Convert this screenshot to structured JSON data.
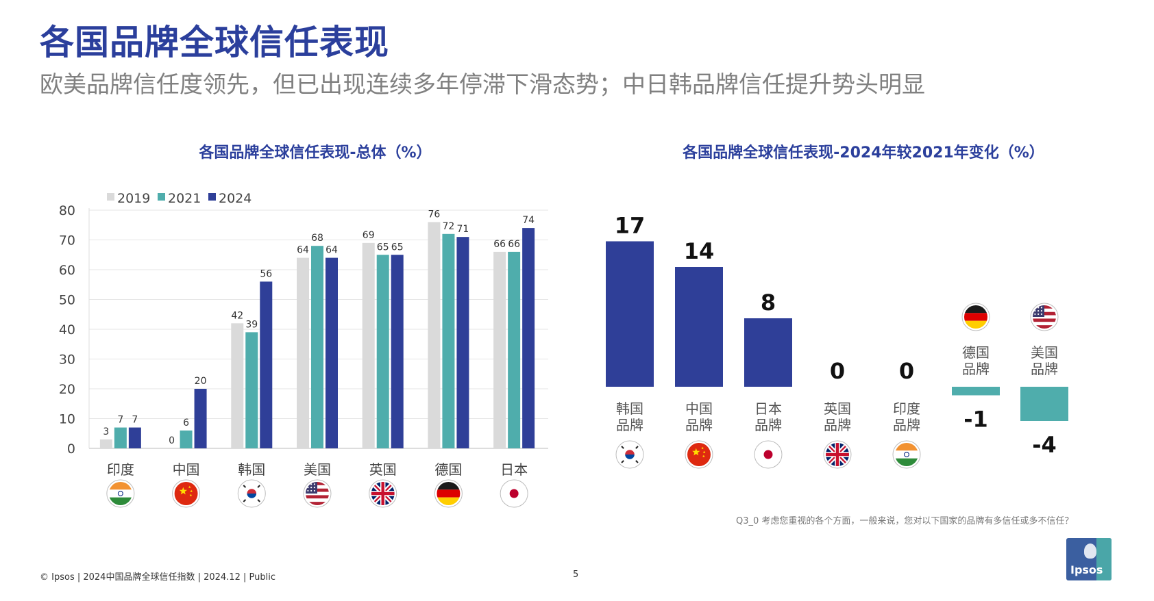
{
  "header": {
    "title": "各国品牌全球信任表现",
    "subtitle": "欧美品牌信任度领先，但已出现连续多年停滞下滑态势；中日韩品牌信任提升势头明显"
  },
  "colors": {
    "y2019": "#dadada",
    "y2021": "#4fadac",
    "y2024": "#2f3f98",
    "accent": "#2b3f9c"
  },
  "chart_data": [
    {
      "type": "bar",
      "title": "各国品牌全球信任表现-总体（%）",
      "categories": [
        "印度",
        "中国",
        "韩国",
        "美国",
        "英国",
        "德国",
        "日本"
      ],
      "series": [
        {
          "name": "2019",
          "values": [
            3,
            0,
            42,
            64,
            69,
            76,
            66
          ]
        },
        {
          "name": "2021",
          "values": [
            7,
            6,
            39,
            68,
            65,
            72,
            66
          ]
        },
        {
          "name": "2024",
          "values": [
            7,
            20,
            56,
            64,
            65,
            71,
            74
          ]
        }
      ],
      "flags": [
        "india",
        "china",
        "korea",
        "usa",
        "uk",
        "germany",
        "japan"
      ],
      "yticks": [
        0,
        10,
        20,
        30,
        40,
        50,
        60,
        70,
        80
      ],
      "ylim": [
        0,
        80
      ],
      "legend": "top-left",
      "grid": true
    },
    {
      "type": "bar",
      "title": "各国品牌全球信任表现-2024年较2021年变化（%）",
      "categories": [
        "韩国\n品牌",
        "中国\n品牌",
        "日本\n品牌",
        "英国\n品牌",
        "印度\n品牌",
        "德国\n品牌",
        "美国\n品牌"
      ],
      "values": [
        17,
        14,
        8,
        0,
        0,
        -1,
        -4
      ],
      "flags": [
        "korea",
        "china",
        "japan",
        "uk",
        "india",
        "germany",
        "usa"
      ]
    }
  ],
  "footer": {
    "left": "© Ipsos | 2024中国品牌全球信任指数 | 2024.12 | Public",
    "page": "5",
    "question": "Q3_0 考虑您重视的各个方面，一般来说，您对以下国家的品牌有多信任或多不信任？",
    "logo": "Ipsos"
  }
}
